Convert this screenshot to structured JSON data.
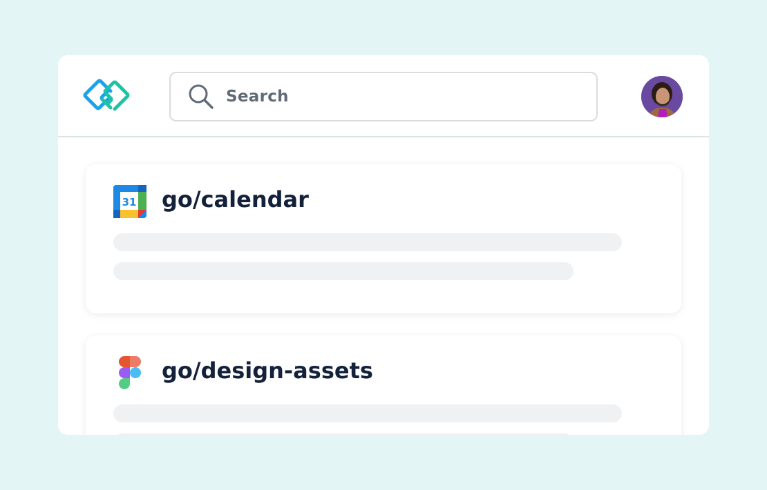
{
  "header": {
    "logo": "golinks-logo",
    "search": {
      "placeholder": "Search",
      "icon": "search-icon"
    },
    "avatar": "user-avatar"
  },
  "cards": [
    {
      "title": "go/calendar",
      "icon": "google-calendar-icon",
      "icon_text": "31"
    },
    {
      "title": "go/design-assets",
      "icon": "figma-icon"
    }
  ],
  "colors": {
    "background": "#e4f5f5",
    "logo_blue": "#1aa3ec",
    "logo_green": "#1cc3a4",
    "title": "#14213a",
    "placeholder_bar": "#f0f1f3"
  }
}
